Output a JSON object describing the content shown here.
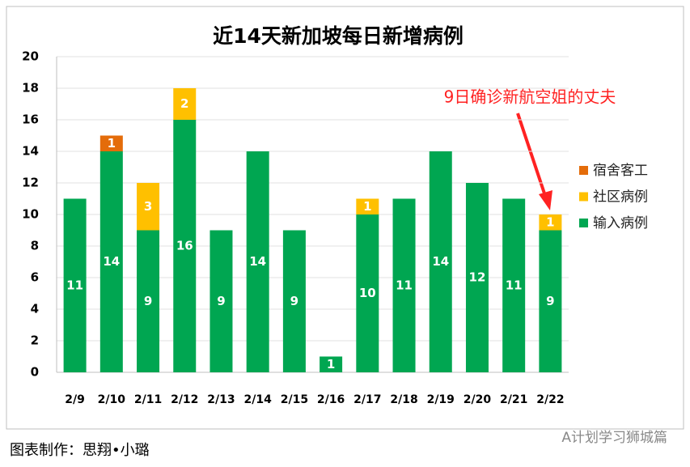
{
  "chart_data": {
    "type": "bar",
    "stacked": true,
    "title": "近14天新加坡每日新增病例",
    "categories": [
      "2/9",
      "2/10",
      "2/11",
      "2/12",
      "2/13",
      "2/14",
      "2/15",
      "2/16",
      "2/17",
      "2/18",
      "2/19",
      "2/20",
      "2/21",
      "2/22"
    ],
    "series": [
      {
        "name": "输入病例",
        "color": "#00a651",
        "values": [
          11,
          14,
          9,
          16,
          9,
          14,
          9,
          1,
          10,
          11,
          14,
          12,
          11,
          9
        ]
      },
      {
        "name": "社区病例",
        "color": "#ffc000",
        "values": [
          null,
          null,
          3,
          2,
          null,
          null,
          null,
          null,
          1,
          null,
          null,
          null,
          null,
          1
        ]
      },
      {
        "name": "宿舍客工",
        "color": "#e46c0a",
        "values": [
          null,
          1,
          null,
          null,
          null,
          null,
          null,
          null,
          null,
          null,
          null,
          null,
          null,
          null
        ]
      }
    ],
    "ylim": [
      0,
      20
    ],
    "yticks": [
      0,
      2,
      4,
      6,
      8,
      10,
      12,
      14,
      16,
      18,
      20
    ],
    "grid": true,
    "legend": "right",
    "annotation": "9日确诊新航空姐的丈夫"
  },
  "footer": "图表制作：思翔•小璐",
  "watermark": "A计划学习狮城篇"
}
